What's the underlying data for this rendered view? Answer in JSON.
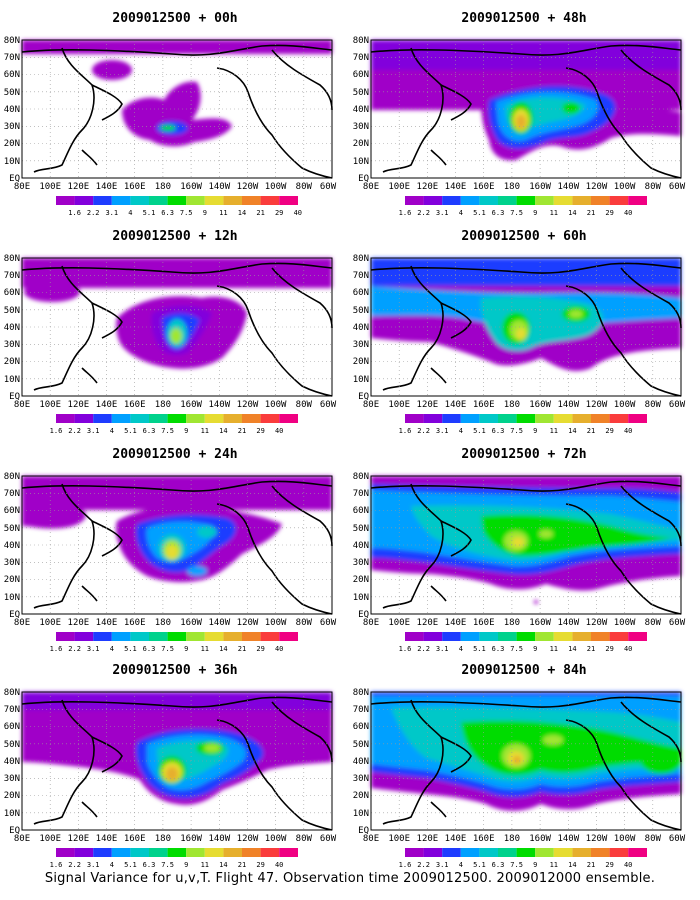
{
  "panels": [
    {
      "title": "2009012500 + 00h"
    },
    {
      "title": "2009012500 + 48h"
    },
    {
      "title": "2009012500 + 12h"
    },
    {
      "title": "2009012500 + 60h"
    },
    {
      "title": "2009012500 + 24h"
    },
    {
      "title": "2009012500 + 72h"
    },
    {
      "title": "2009012500 + 36h"
    },
    {
      "title": "2009012500 + 84h"
    }
  ],
  "lat_labels": [
    "80N",
    "70N",
    "60N",
    "50N",
    "40N",
    "30N",
    "20N",
    "10N",
    "EQ"
  ],
  "lon_labels": [
    "80E",
    "100E",
    "120E",
    "140E",
    "160E",
    "180",
    "160W",
    "140W",
    "120W",
    "100W",
    "80W",
    "60W"
  ],
  "colorbar": {
    "labels": [
      "1.6",
      "2.2",
      "3.1",
      "4",
      "5.1",
      "6.3",
      "7.5",
      "9",
      "11",
      "14",
      "21",
      "29",
      "40"
    ],
    "colors": [
      "#a000c8",
      "#8200dc",
      "#1e3cff",
      "#00a0ff",
      "#00c8c8",
      "#00d28c",
      "#00dc00",
      "#a0e632",
      "#e6dc32",
      "#e6af2d",
      "#f08228",
      "#fa3c3c",
      "#f00082"
    ]
  },
  "caption": "Signal Variance for u,v,T. Flight 47. Observation time 2009012500. 2009012000 ensemble."
}
